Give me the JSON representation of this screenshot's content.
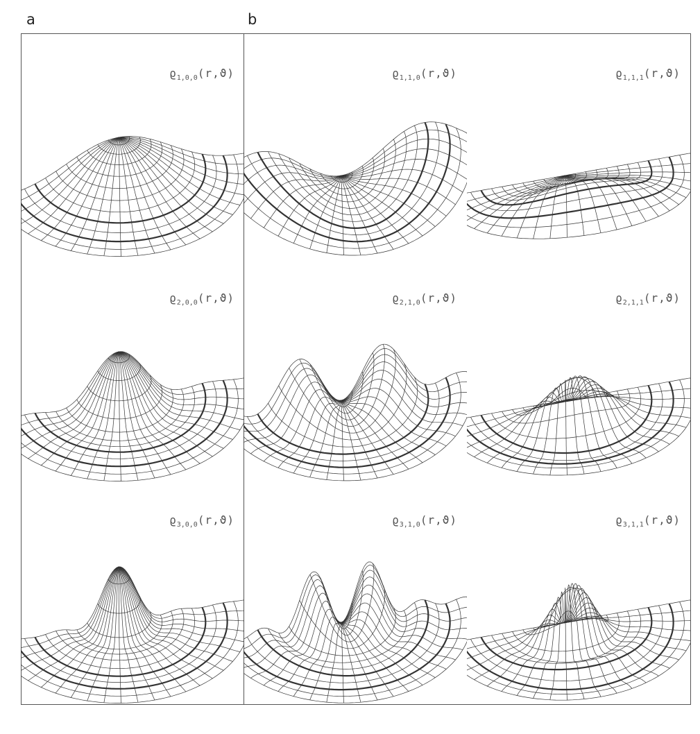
{
  "panels": [
    {
      "letter": "a"
    },
    {
      "letter": "b"
    }
  ],
  "plots": [
    {
      "id": "p100",
      "label_main": "ϱ",
      "label_sub": "1,0,0",
      "label_args": "(r,ϑ)",
      "n": 1,
      "l": 0,
      "m": 0
    },
    {
      "id": "p110",
      "label_main": "ϱ",
      "label_sub": "1,1,0",
      "label_args": "(r,ϑ)",
      "n": 1,
      "l": 1,
      "m": 0
    },
    {
      "id": "p111",
      "label_main": "ϱ",
      "label_sub": "1,1,1",
      "label_args": "(r,ϑ)",
      "n": 1,
      "l": 1,
      "m": 1
    },
    {
      "id": "p200",
      "label_main": "ϱ",
      "label_sub": "2,0,0",
      "label_args": "(r,ϑ)",
      "n": 2,
      "l": 0,
      "m": 0
    },
    {
      "id": "p210",
      "label_main": "ϱ",
      "label_sub": "2,1,0",
      "label_args": "(r,ϑ)",
      "n": 2,
      "l": 1,
      "m": 0
    },
    {
      "id": "p211",
      "label_main": "ϱ",
      "label_sub": "2,1,1",
      "label_args": "(r,ϑ)",
      "n": 2,
      "l": 1,
      "m": 1
    },
    {
      "id": "p300",
      "label_main": "ϱ",
      "label_sub": "3,0,0",
      "label_args": "(r,ϑ)",
      "n": 3,
      "l": 0,
      "m": 0
    },
    {
      "id": "p310",
      "label_main": "ϱ",
      "label_sub": "3,1,0",
      "label_args": "(r,ϑ)",
      "n": 3,
      "l": 1,
      "m": 0
    },
    {
      "id": "p311",
      "label_main": "ϱ",
      "label_sub": "3,1,1",
      "label_args": "(r,ϑ)",
      "n": 3,
      "l": 1,
      "m": 1
    }
  ],
  "colors": {
    "line": "#333333",
    "frame": "#555555",
    "background": "#ffffff"
  }
}
